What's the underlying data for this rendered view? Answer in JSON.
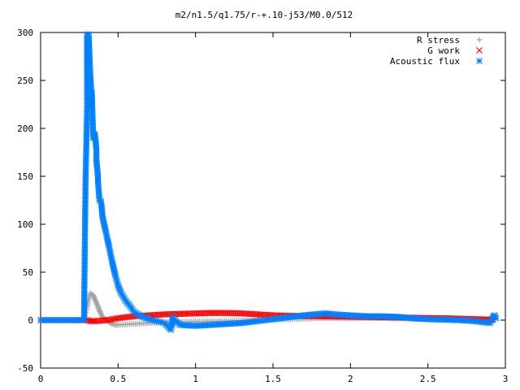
{
  "chart_data": {
    "type": "scatter",
    "title": "m2/n1.5/q1.75/r-+.10-j53/M0.0/512",
    "xlabel": "",
    "ylabel": "",
    "xlim": [
      0,
      3
    ],
    "ylim": [
      -50,
      300
    ],
    "x_ticks": [
      {
        "value": 0,
        "label": "0"
      },
      {
        "value": 0.5,
        "label": "0.5"
      },
      {
        "value": 1,
        "label": "1"
      },
      {
        "value": 1.5,
        "label": "1.5"
      },
      {
        "value": 2,
        "label": "2"
      },
      {
        "value": 2.5,
        "label": "2.5"
      },
      {
        "value": 3,
        "label": "3"
      }
    ],
    "y_ticks": [
      {
        "value": -50,
        "label": "-50"
      },
      {
        "value": 0,
        "label": "0"
      },
      {
        "value": 50,
        "label": "50"
      },
      {
        "value": 100,
        "label": "100"
      },
      {
        "value": 150,
        "label": "150"
      },
      {
        "value": 200,
        "label": "200"
      },
      {
        "value": 250,
        "label": "250"
      },
      {
        "value": 300,
        "label": "300"
      }
    ],
    "grid": false,
    "legend_position": "top-right",
    "series": [
      {
        "name": "R stress",
        "marker": "plus",
        "color": "#a0a0a0",
        "points": [
          [
            0.0,
            0
          ],
          [
            0.1,
            0
          ],
          [
            0.2,
            0
          ],
          [
            0.28,
            0
          ],
          [
            0.3,
            14
          ],
          [
            0.31,
            22
          ],
          [
            0.32,
            28
          ],
          [
            0.33,
            27
          ],
          [
            0.34,
            26
          ],
          [
            0.35,
            22
          ],
          [
            0.36,
            18
          ],
          [
            0.37,
            14
          ],
          [
            0.38,
            10
          ],
          [
            0.39,
            6
          ],
          [
            0.4,
            3
          ],
          [
            0.42,
            0
          ],
          [
            0.44,
            -2
          ],
          [
            0.46,
            -4
          ],
          [
            0.48,
            -5
          ],
          [
            0.5,
            -5
          ],
          [
            0.55,
            -4.5
          ],
          [
            0.6,
            -4
          ],
          [
            0.7,
            -3
          ],
          [
            0.8,
            -2.5
          ],
          [
            0.9,
            -2
          ],
          [
            1.0,
            -1.5
          ],
          [
            1.1,
            -1.2
          ],
          [
            1.2,
            -1
          ],
          [
            1.3,
            -0.5
          ],
          [
            1.4,
            0
          ],
          [
            1.6,
            1
          ],
          [
            1.8,
            2
          ],
          [
            2.0,
            2
          ],
          [
            2.2,
            2
          ],
          [
            2.4,
            1.5
          ],
          [
            2.6,
            1
          ],
          [
            2.8,
            1
          ],
          [
            2.92,
            1
          ]
        ]
      },
      {
        "name": "G work",
        "marker": "cross",
        "color": "#ff0000",
        "points": [
          [
            0.0,
            0
          ],
          [
            0.2,
            0
          ],
          [
            0.3,
            0
          ],
          [
            0.32,
            -1
          ],
          [
            0.35,
            -1
          ],
          [
            0.4,
            -0.5
          ],
          [
            0.45,
            0.5
          ],
          [
            0.5,
            2
          ],
          [
            0.6,
            4
          ],
          [
            0.7,
            5
          ],
          [
            0.8,
            6
          ],
          [
            0.9,
            6.5
          ],
          [
            1.0,
            7
          ],
          [
            1.1,
            7.5
          ],
          [
            1.2,
            7.5
          ],
          [
            1.3,
            7
          ],
          [
            1.4,
            6
          ],
          [
            1.5,
            5
          ],
          [
            1.6,
            4.5
          ],
          [
            1.8,
            4
          ],
          [
            2.0,
            3.5
          ],
          [
            2.2,
            3
          ],
          [
            2.4,
            2.5
          ],
          [
            2.6,
            2
          ],
          [
            2.8,
            1
          ],
          [
            2.9,
            0.5
          ],
          [
            2.92,
            0.5
          ]
        ]
      },
      {
        "name": "Acoustic flux",
        "marker": "star",
        "color": "#0080ff",
        "points": [
          [
            0.0,
            0
          ],
          [
            0.1,
            0
          ],
          [
            0.2,
            0
          ],
          [
            0.28,
            0
          ],
          [
            0.29,
            146
          ],
          [
            0.3,
            220
          ],
          [
            0.3,
            298
          ],
          [
            0.31,
            222
          ],
          [
            0.31,
            298
          ],
          [
            0.32,
            258
          ],
          [
            0.33,
            228
          ],
          [
            0.33,
            237
          ],
          [
            0.34,
            190
          ],
          [
            0.35,
            194
          ],
          [
            0.36,
            179
          ],
          [
            0.36,
            167
          ],
          [
            0.37,
            150
          ],
          [
            0.37,
            145
          ],
          [
            0.38,
            125
          ],
          [
            0.39,
            124
          ],
          [
            0.4,
            107
          ],
          [
            0.41,
            100
          ],
          [
            0.42,
            93
          ],
          [
            0.43,
            85
          ],
          [
            0.44,
            78
          ],
          [
            0.45,
            70
          ],
          [
            0.46,
            62
          ],
          [
            0.47,
            55
          ],
          [
            0.48,
            48
          ],
          [
            0.49,
            42
          ],
          [
            0.5,
            36
          ],
          [
            0.52,
            28
          ],
          [
            0.55,
            20
          ],
          [
            0.58,
            14
          ],
          [
            0.6,
            9
          ],
          [
            0.65,
            4
          ],
          [
            0.7,
            1
          ],
          [
            0.75,
            -1
          ],
          [
            0.8,
            -3
          ],
          [
            0.84,
            -10
          ],
          [
            0.85,
            -4
          ],
          [
            0.85,
            3
          ],
          [
            0.9,
            -5
          ],
          [
            1.0,
            -6
          ],
          [
            1.1,
            -5
          ],
          [
            1.2,
            -4
          ],
          [
            1.3,
            -3
          ],
          [
            1.4,
            -1
          ],
          [
            1.5,
            1
          ],
          [
            1.6,
            3
          ],
          [
            1.7,
            5
          ],
          [
            1.8,
            6.5
          ],
          [
            1.85,
            7
          ],
          [
            1.9,
            6
          ],
          [
            2.0,
            5
          ],
          [
            2.1,
            4
          ],
          [
            2.2,
            4
          ],
          [
            2.3,
            3.5
          ],
          [
            2.4,
            2
          ],
          [
            2.5,
            1
          ],
          [
            2.6,
            0.5
          ],
          [
            2.7,
            0
          ],
          [
            2.8,
            -1
          ],
          [
            2.85,
            -2
          ],
          [
            2.9,
            -3
          ],
          [
            2.92,
            3
          ],
          [
            2.93,
            5
          ],
          [
            2.94,
            2
          ]
        ]
      }
    ]
  }
}
